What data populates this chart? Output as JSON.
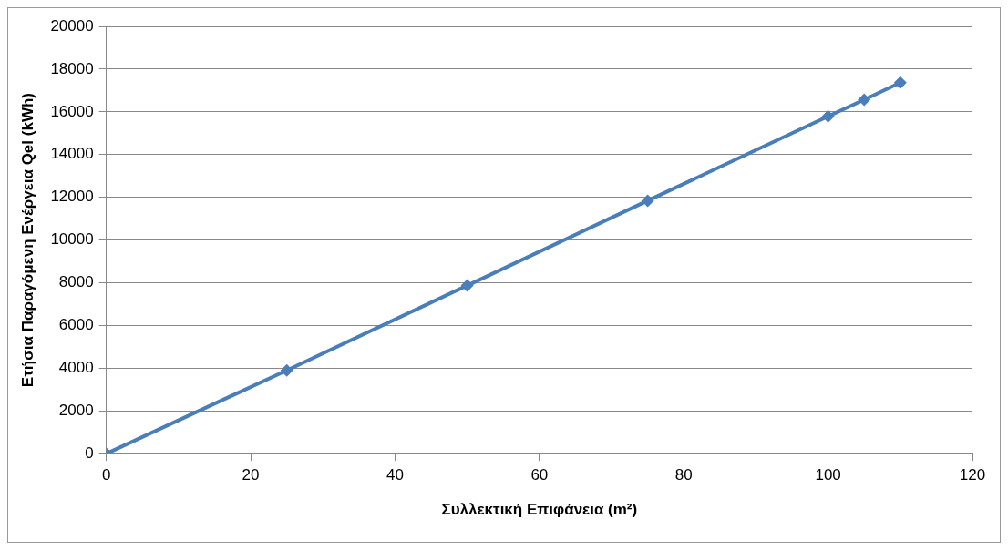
{
  "chart_data": {
    "type": "line",
    "xlabel": "Συλλεκτική Επιφάνεια (m²)",
    "ylabel": "Ετήσια Παραγόμενη Ενέργεια Qel (kWh)",
    "x": [
      0,
      25,
      50,
      75,
      100,
      105,
      110
    ],
    "series": [
      {
        "color": "#4a7ebb",
        "values": [
          0,
          3900,
          7870,
          11840,
          15790,
          16570,
          17370
        ]
      }
    ],
    "xlim": [
      0,
      120
    ],
    "xticks": [
      0,
      20,
      40,
      60,
      80,
      100,
      120
    ],
    "ylim": [
      0,
      20000
    ],
    "yticks": [
      0,
      2000,
      4000,
      6000,
      8000,
      10000,
      12000,
      14000,
      16000,
      18000,
      20000
    ],
    "grid": "y",
    "legend": false,
    "marker": "diamond",
    "line_style": "solid"
  }
}
